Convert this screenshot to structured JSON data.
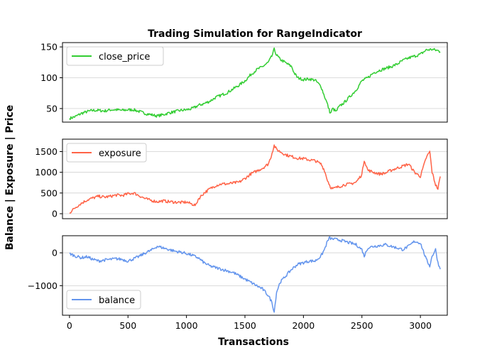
{
  "chart_data": {
    "type": "line",
    "title": "Trading Simulation for RangeIndicator",
    "xlabel": "Transactions",
    "ylabel": "Balance | Exposure | Price",
    "xlim": [
      -60,
      3230
    ],
    "xticks": [
      0,
      500,
      1000,
      1500,
      2000,
      2500,
      3000
    ],
    "grid": "horizontal",
    "panels": [
      {
        "name": "close_price",
        "color": "#32cd32",
        "legend": "top-left",
        "ylim": [
          28,
          157
        ],
        "yticks": [
          50,
          100,
          150
        ],
        "points": [
          [
            0,
            34
          ],
          [
            50,
            37
          ],
          [
            100,
            42
          ],
          [
            150,
            45
          ],
          [
            200,
            47
          ],
          [
            250,
            47
          ],
          [
            300,
            46
          ],
          [
            350,
            48
          ],
          [
            400,
            48
          ],
          [
            450,
            47
          ],
          [
            500,
            48
          ],
          [
            550,
            48
          ],
          [
            600,
            45
          ],
          [
            650,
            42
          ],
          [
            700,
            40
          ],
          [
            750,
            38
          ],
          [
            800,
            40
          ],
          [
            850,
            43
          ],
          [
            900,
            45
          ],
          [
            950,
            47
          ],
          [
            1000,
            48
          ],
          [
            1050,
            50
          ],
          [
            1100,
            55
          ],
          [
            1150,
            58
          ],
          [
            1200,
            62
          ],
          [
            1250,
            68
          ],
          [
            1300,
            72
          ],
          [
            1350,
            76
          ],
          [
            1400,
            82
          ],
          [
            1450,
            88
          ],
          [
            1500,
            95
          ],
          [
            1550,
            105
          ],
          [
            1600,
            113
          ],
          [
            1650,
            118
          ],
          [
            1700,
            125
          ],
          [
            1730,
            135
          ],
          [
            1750,
            146
          ],
          [
            1770,
            137
          ],
          [
            1800,
            130
          ],
          [
            1850,
            124
          ],
          [
            1900,
            118
          ],
          [
            1920,
            108
          ],
          [
            1950,
            100
          ],
          [
            2000,
            97
          ],
          [
            2050,
            98
          ],
          [
            2100,
            96
          ],
          [
            2150,
            86
          ],
          [
            2180,
            70
          ],
          [
            2200,
            60
          ],
          [
            2220,
            48
          ],
          [
            2230,
            42
          ],
          [
            2250,
            50
          ],
          [
            2280,
            45
          ],
          [
            2300,
            52
          ],
          [
            2350,
            60
          ],
          [
            2400,
            70
          ],
          [
            2450,
            80
          ],
          [
            2500,
            95
          ],
          [
            2550,
            100
          ],
          [
            2600,
            108
          ],
          [
            2650,
            112
          ],
          [
            2700,
            115
          ],
          [
            2750,
            118
          ],
          [
            2800,
            122
          ],
          [
            2850,
            128
          ],
          [
            2900,
            132
          ],
          [
            2950,
            135
          ],
          [
            3000,
            138
          ],
          [
            3050,
            145
          ],
          [
            3100,
            146
          ],
          [
            3150,
            144
          ],
          [
            3170,
            142
          ]
        ]
      },
      {
        "name": "exposure",
        "color": "#ff6347",
        "legend": "top-left",
        "ylim": [
          -120,
          1800
        ],
        "yticks": [
          0,
          500,
          1000,
          1500
        ],
        "points": [
          [
            0,
            20
          ],
          [
            50,
            150
          ],
          [
            100,
            250
          ],
          [
            150,
            330
          ],
          [
            200,
            380
          ],
          [
            250,
            420
          ],
          [
            300,
            400
          ],
          [
            350,
            420
          ],
          [
            400,
            450
          ],
          [
            450,
            440
          ],
          [
            500,
            480
          ],
          [
            550,
            500
          ],
          [
            600,
            430
          ],
          [
            650,
            360
          ],
          [
            700,
            320
          ],
          [
            750,
            290
          ],
          [
            800,
            310
          ],
          [
            850,
            290
          ],
          [
            900,
            280
          ],
          [
            950,
            270
          ],
          [
            1000,
            280
          ],
          [
            1050,
            230
          ],
          [
            1080,
            200
          ],
          [
            1100,
            350
          ],
          [
            1150,
            500
          ],
          [
            1200,
            600
          ],
          [
            1250,
            680
          ],
          [
            1300,
            720
          ],
          [
            1350,
            720
          ],
          [
            1400,
            740
          ],
          [
            1450,
            760
          ],
          [
            1500,
            850
          ],
          [
            1550,
            960
          ],
          [
            1600,
            1030
          ],
          [
            1650,
            1100
          ],
          [
            1700,
            1200
          ],
          [
            1720,
            1350
          ],
          [
            1750,
            1650
          ],
          [
            1770,
            1550
          ],
          [
            1800,
            1500
          ],
          [
            1850,
            1420
          ],
          [
            1900,
            1380
          ],
          [
            1950,
            1340
          ],
          [
            2000,
            1330
          ],
          [
            2050,
            1300
          ],
          [
            2100,
            1280
          ],
          [
            2150,
            1200
          ],
          [
            2180,
            1050
          ],
          [
            2200,
            850
          ],
          [
            2230,
            650
          ],
          [
            2250,
            600
          ],
          [
            2300,
            650
          ],
          [
            2350,
            700
          ],
          [
            2400,
            720
          ],
          [
            2450,
            760
          ],
          [
            2500,
            950
          ],
          [
            2520,
            1300
          ],
          [
            2550,
            1050
          ],
          [
            2600,
            1000
          ],
          [
            2650,
            960
          ],
          [
            2700,
            980
          ],
          [
            2750,
            1050
          ],
          [
            2800,
            1100
          ],
          [
            2850,
            1150
          ],
          [
            2900,
            1200
          ],
          [
            2950,
            1000
          ],
          [
            3000,
            900
          ],
          [
            3050,
            1350
          ],
          [
            3080,
            1500
          ],
          [
            3100,
            1000
          ],
          [
            3130,
            700
          ],
          [
            3150,
            600
          ],
          [
            3170,
            900
          ]
        ]
      },
      {
        "name": "balance",
        "color": "#6495ed",
        "legend": "bottom-left",
        "ylim": [
          -1900,
          520
        ],
        "yticks": [
          0,
          -1000
        ],
        "points": [
          [
            0,
            -20
          ],
          [
            50,
            -100
          ],
          [
            100,
            -150
          ],
          [
            150,
            -120
          ],
          [
            200,
            -200
          ],
          [
            250,
            -250
          ],
          [
            300,
            -220
          ],
          [
            350,
            -200
          ],
          [
            400,
            -180
          ],
          [
            450,
            -200
          ],
          [
            500,
            -250
          ],
          [
            550,
            -180
          ],
          [
            600,
            -100
          ],
          [
            650,
            0
          ],
          [
            700,
            80
          ],
          [
            750,
            200
          ],
          [
            800,
            150
          ],
          [
            850,
            100
          ],
          [
            900,
            50
          ],
          [
            950,
            20
          ],
          [
            1000,
            -20
          ],
          [
            1050,
            -80
          ],
          [
            1100,
            -150
          ],
          [
            1150,
            -300
          ],
          [
            1200,
            -400
          ],
          [
            1250,
            -450
          ],
          [
            1300,
            -500
          ],
          [
            1350,
            -550
          ],
          [
            1400,
            -600
          ],
          [
            1450,
            -700
          ],
          [
            1500,
            -800
          ],
          [
            1550,
            -900
          ],
          [
            1600,
            -1000
          ],
          [
            1650,
            -1100
          ],
          [
            1700,
            -1300
          ],
          [
            1730,
            -1500
          ],
          [
            1750,
            -1800
          ],
          [
            1770,
            -1200
          ],
          [
            1800,
            -900
          ],
          [
            1850,
            -700
          ],
          [
            1900,
            -500
          ],
          [
            1950,
            -350
          ],
          [
            2000,
            -300
          ],
          [
            2050,
            -250
          ],
          [
            2100,
            -250
          ],
          [
            2150,
            -100
          ],
          [
            2180,
            100
          ],
          [
            2200,
            300
          ],
          [
            2220,
            450
          ],
          [
            2250,
            420
          ],
          [
            2300,
            400
          ],
          [
            2350,
            350
          ],
          [
            2400,
            300
          ],
          [
            2450,
            250
          ],
          [
            2500,
            100
          ],
          [
            2520,
            -100
          ],
          [
            2550,
            150
          ],
          [
            2600,
            200
          ],
          [
            2650,
            220
          ],
          [
            2700,
            250
          ],
          [
            2750,
            200
          ],
          [
            2800,
            150
          ],
          [
            2850,
            100
          ],
          [
            2900,
            200
          ],
          [
            2950,
            350
          ],
          [
            3000,
            300
          ],
          [
            3050,
            -200
          ],
          [
            3080,
            -400
          ],
          [
            3100,
            -100
          ],
          [
            3130,
            100
          ],
          [
            3150,
            -300
          ],
          [
            3170,
            -500
          ]
        ]
      }
    ]
  }
}
